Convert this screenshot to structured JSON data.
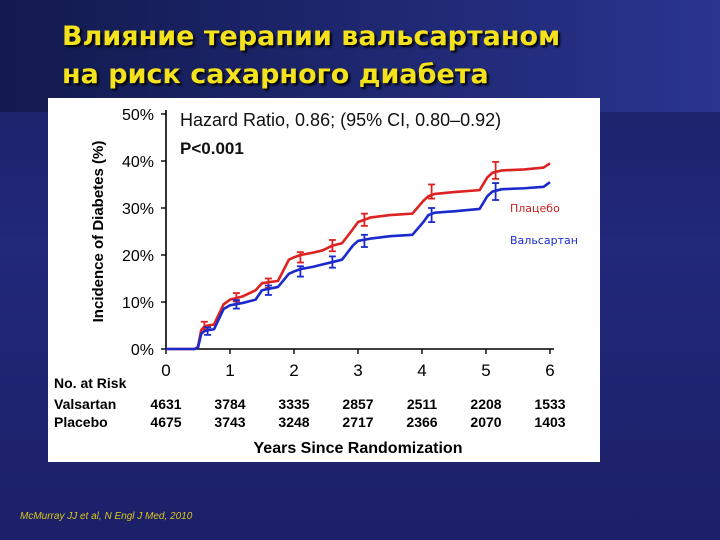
{
  "slide": {
    "title_line1": "Влияние терапии вальсартаном",
    "title_line2": "на риск сахарного диабета",
    "citation": "McMurray JJ et al, N Engl J Med, 2010"
  },
  "colors": {
    "title": "#f4e21c",
    "placebo": "#dd2222",
    "valsartan": "#1a2acc",
    "background": "#1e246e"
  },
  "chart_data": {
    "type": "line",
    "ylabel": "Incidence of Diabetes (%)",
    "xlabel": "Years Since Randomization",
    "xlim": [
      0,
      6
    ],
    "ylim": [
      0,
      50
    ],
    "x_ticks": [
      "0",
      "1",
      "2",
      "3",
      "4",
      "5",
      "6"
    ],
    "y_ticks": [
      "0%",
      "10%",
      "20%",
      "30%",
      "40%",
      "50%"
    ],
    "grid": false,
    "annotation_hr": "Hazard Ratio, 0.86; (95% CI, 0.80–0.92)",
    "annotation_p": "P<0.001",
    "series": [
      {
        "name": "Плацебо",
        "color": "#dd2222",
        "x": [
          0,
          0.45,
          0.5,
          0.55,
          0.6,
          0.65,
          0.75,
          0.9,
          1.0,
          1.2,
          1.4,
          1.5,
          1.75,
          1.92,
          2.0,
          2.1,
          2.3,
          2.45,
          2.6,
          2.75,
          2.92,
          3.0,
          3.2,
          3.5,
          3.85,
          4.02,
          4.1,
          4.2,
          4.5,
          4.9,
          5.02,
          5.1,
          5.25,
          5.6,
          5.9,
          6.0
        ],
        "y": [
          0,
          0,
          0.5,
          4.0,
          4.8,
          5.0,
          5.2,
          9.5,
          10.5,
          11.2,
          12.5,
          14.0,
          14.5,
          19.0,
          19.5,
          20.0,
          20.5,
          21.0,
          22.0,
          22.5,
          25.5,
          27.0,
          28.0,
          28.5,
          28.8,
          31.5,
          32.5,
          33.0,
          33.4,
          33.8,
          36.5,
          37.5,
          38.0,
          38.2,
          38.6,
          39.5
        ],
        "error_bars_x": [
          0.6,
          1.1,
          1.6,
          2.1,
          2.6,
          3.1,
          4.15,
          5.15
        ],
        "error_bars_y": [
          5.0,
          11.0,
          14.0,
          19.5,
          22.0,
          27.5,
          33.5,
          38.0
        ],
        "error_bars_half": [
          0.8,
          0.9,
          1.0,
          1.1,
          1.2,
          1.3,
          1.5,
          1.8
        ]
      },
      {
        "name": "Вальсартан",
        "color": "#1a2acc",
        "x": [
          0,
          0.45,
          0.5,
          0.55,
          0.6,
          0.65,
          0.75,
          0.9,
          1.0,
          1.2,
          1.4,
          1.5,
          1.75,
          1.92,
          2.0,
          2.1,
          2.3,
          2.45,
          2.6,
          2.75,
          2.92,
          3.0,
          3.2,
          3.5,
          3.85,
          4.02,
          4.1,
          4.2,
          4.5,
          4.9,
          5.02,
          5.1,
          5.25,
          5.6,
          5.9,
          6.0
        ],
        "y": [
          0,
          0,
          0.3,
          3.2,
          3.8,
          4.0,
          4.2,
          8.5,
          9.3,
          9.8,
          10.5,
          12.5,
          13.2,
          16.0,
          16.5,
          17.0,
          17.5,
          18.0,
          18.5,
          19.0,
          22.0,
          23.0,
          23.5,
          24.0,
          24.3,
          27.0,
          28.5,
          29.0,
          29.3,
          29.8,
          32.5,
          33.5,
          34.0,
          34.2,
          34.5,
          35.5
        ],
        "error_bars_x": [
          0.65,
          1.1,
          1.6,
          2.1,
          2.6,
          3.1,
          4.15,
          5.15
        ],
        "error_bars_y": [
          3.8,
          9.5,
          12.5,
          16.5,
          18.5,
          23.0,
          28.5,
          33.5
        ],
        "error_bars_half": [
          0.8,
          0.9,
          1.0,
          1.1,
          1.2,
          1.3,
          1.5,
          1.8
        ]
      }
    ],
    "legend_labels": [
      {
        "text": "Плацебо",
        "color": "#cc2020"
      },
      {
        "text": "Вальсартан",
        "color": "#1a2acc"
      }
    ],
    "risk_table": {
      "header": "No. at Risk",
      "rows": [
        {
          "label": "Valsartan",
          "values": [
            "4631",
            "3784",
            "3335",
            "2857",
            "2511",
            "2208",
            "1533"
          ]
        },
        {
          "label": "Placebo",
          "values": [
            "4675",
            "3743",
            "3248",
            "2717",
            "2366",
            "2070",
            "1403"
          ]
        }
      ]
    }
  }
}
